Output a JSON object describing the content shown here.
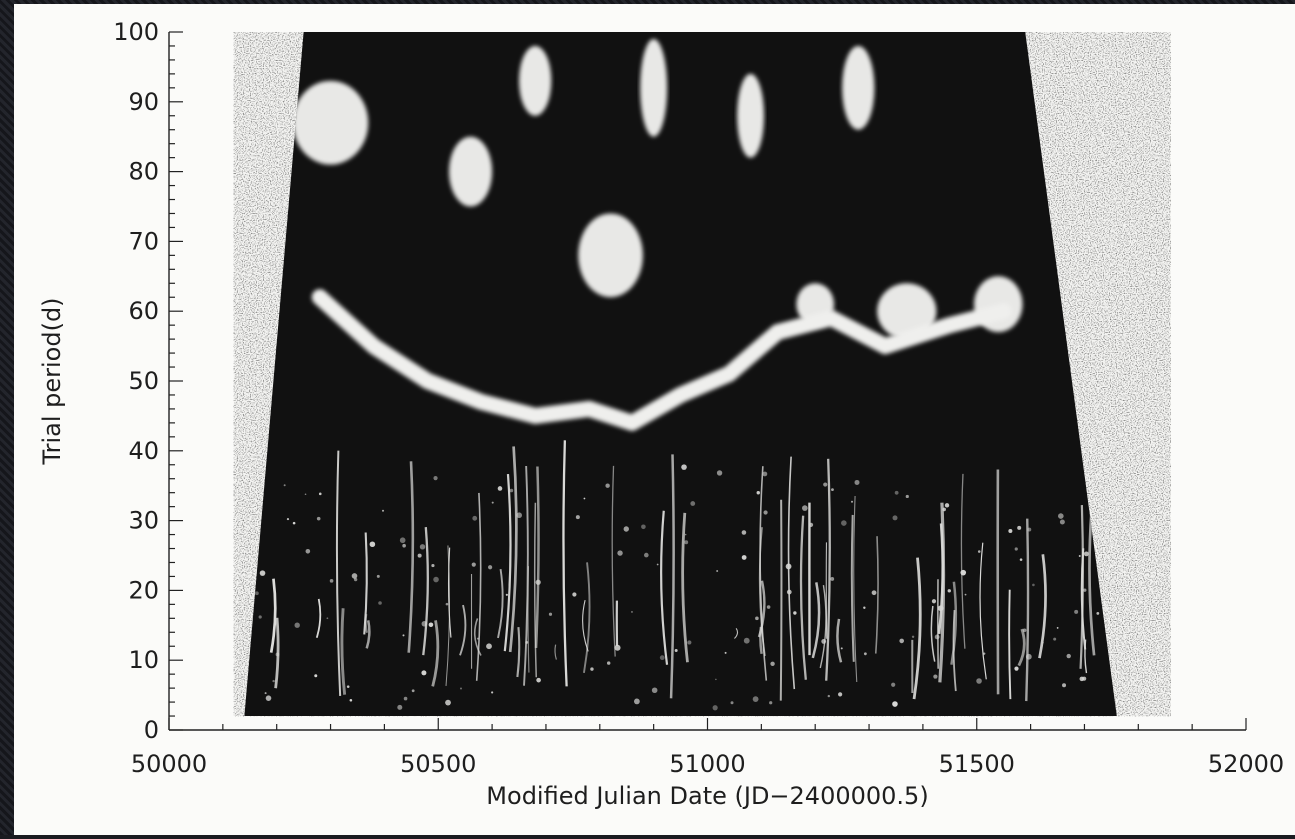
{
  "chart_data": {
    "type": "heatmap",
    "xlabel": "Modified Julian Date (JD−2400000.5)",
    "ylabel": "Trial period(d)",
    "xlim": [
      50000,
      52000
    ],
    "ylim": [
      0,
      100
    ],
    "x_ticks": [
      50000,
      50500,
      51000,
      51500,
      52000
    ],
    "y_ticks": [
      0,
      10,
      20,
      30,
      40,
      50,
      60,
      70,
      80,
      90,
      100
    ],
    "data_extent": {
      "x_left_at_p100": 50250,
      "x_left_at_p0": 50140,
      "x_right_at_p100": 51590,
      "x_right_at_p0": 51760,
      "p_min": 2,
      "p_max": 100
    },
    "features": {
      "bright_arc": [
        [
          50280,
          62
        ],
        [
          50380,
          55
        ],
        [
          50480,
          50
        ],
        [
          50580,
          47
        ],
        [
          50680,
          45
        ],
        [
          50780,
          46
        ],
        [
          50860,
          44
        ],
        [
          50950,
          48
        ],
        [
          51040,
          51
        ],
        [
          51130,
          57
        ],
        [
          51230,
          59
        ],
        [
          51330,
          55
        ],
        [
          51450,
          58
        ],
        [
          51550,
          60
        ]
      ],
      "bright_blobs": [
        {
          "x": 50300,
          "p": 87,
          "rx": 70,
          "rp": 6
        },
        {
          "x": 50560,
          "p": 80,
          "rx": 40,
          "rp": 5
        },
        {
          "x": 50820,
          "p": 68,
          "rx": 60,
          "rp": 6
        },
        {
          "x": 50900,
          "p": 92,
          "rx": 25,
          "rp": 7
        },
        {
          "x": 50680,
          "p": 93,
          "rx": 30,
          "rp": 5
        },
        {
          "x": 51080,
          "p": 88,
          "rx": 25,
          "rp": 6
        },
        {
          "x": 51280,
          "p": 92,
          "rx": 30,
          "rp": 6
        },
        {
          "x": 51370,
          "p": 60,
          "rx": 55,
          "rp": 4
        },
        {
          "x": 51540,
          "p": 61,
          "rx": 45,
          "rp": 4
        },
        {
          "x": 51200,
          "p": 61,
          "rx": 35,
          "rp": 3
        }
      ]
    }
  }
}
